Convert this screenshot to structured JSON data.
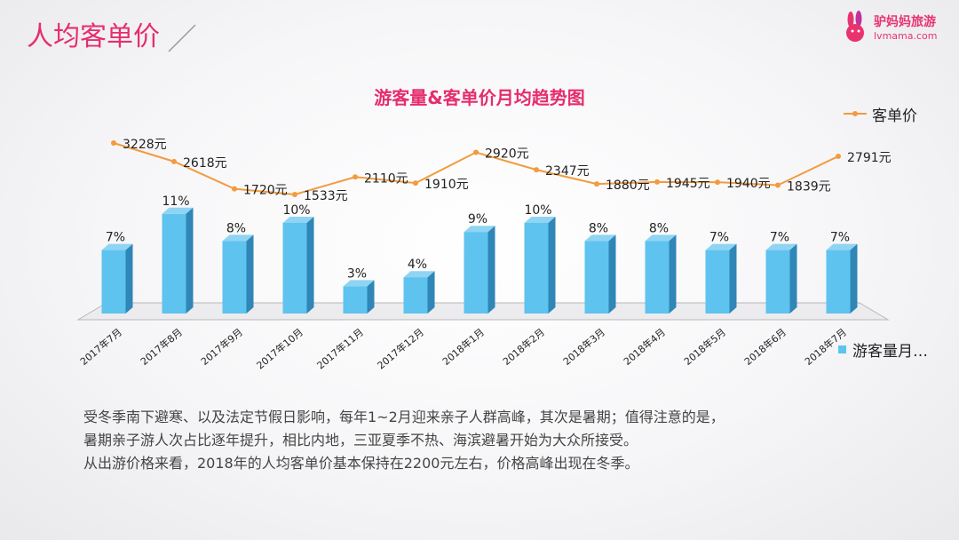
{
  "slide": {
    "title": "人均客单价"
  },
  "logo": {
    "name": "驴妈妈旅游",
    "url": "lvmama.com"
  },
  "chart_data": {
    "type": "bar",
    "title": "游客量&客单价月均趋势图",
    "categories": [
      "2017年7月",
      "2017年8月",
      "2017年9月",
      "2017年10月",
      "2017年11月",
      "2017年12月",
      "2018年1月",
      "2018年2月",
      "2018年3月",
      "2018年4月",
      "2018年5月",
      "2018年6月",
      "2018年7月"
    ],
    "series": [
      {
        "name": "游客量月…",
        "type": "bar",
        "unit": "%",
        "values": [
          7,
          11,
          8,
          10,
          3,
          4,
          9,
          10,
          8,
          8,
          7,
          7,
          7
        ],
        "color": "#5ec3ee"
      },
      {
        "name": "客单价",
        "type": "line",
        "unit": "元",
        "values": [
          3228,
          2618,
          1720,
          1533,
          2110,
          1910,
          2920,
          2347,
          1880,
          1945,
          1940,
          1839,
          2791
        ],
        "color": "#f29b3f"
      }
    ],
    "legend": "right"
  },
  "paragraph": [
    "受冬季南下避寒、以及法定节假日影响，每年1~2月迎来亲子人群高峰，其次是暑期；值得注意的是，",
    "暑期亲子游人次占比逐年提升，相比内地，三亚夏季不热、海滨避暑开始为大众所接受。",
    "从出游价格来看，2018年的人均客单价基本保持在2200元左右，价格高峰出现在冬季。"
  ]
}
